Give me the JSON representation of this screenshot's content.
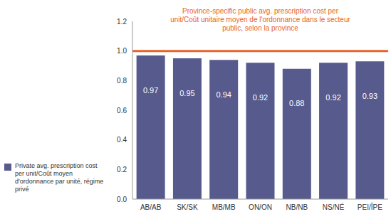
{
  "chart_data": {
    "type": "bar",
    "categories": [
      "AB/AB",
      "SK/SK",
      "MB/MB",
      "ON/ON",
      "NB/NB",
      "NS/NÉ",
      "PEI/ÎPE"
    ],
    "series": [
      {
        "name": "Private avg. prescription cost per unit/Coût moyen d'ordonnance par unité, régime privé",
        "color": "#575a8c",
        "values": [
          0.97,
          0.95,
          0.94,
          0.92,
          0.88,
          0.92,
          0.93
        ]
      }
    ],
    "ylim": [
      0,
      1.2
    ],
    "yticks": [
      {
        "value": 0,
        "label": "0.0"
      },
      0.2,
      0.4,
      0.6,
      0.8,
      {
        "value": 1,
        "label": "1.0"
      },
      1.2
    ],
    "grid": false,
    "data_labels": true,
    "legend": "left",
    "annotations": [
      {
        "text": "Province-specific public avg. prescription cost per unit/Coût unitaire moyen de l'ordonnance dans le secteur public, selon la province",
        "y": 1,
        "color": "#e8632a"
      }
    ]
  }
}
